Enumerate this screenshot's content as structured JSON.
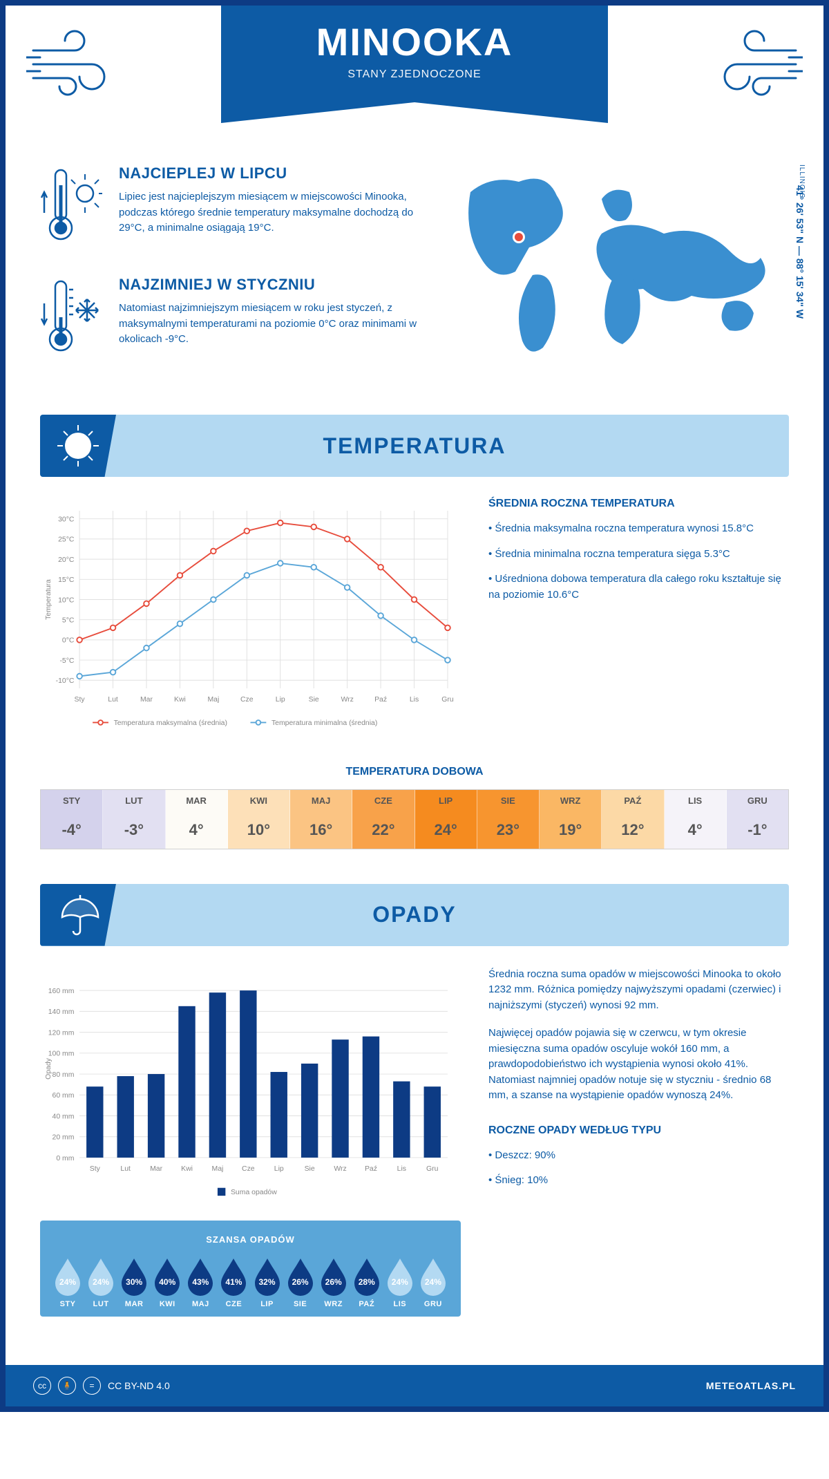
{
  "header": {
    "city": "MINOOKA",
    "country": "STANY ZJEDNOCZONE",
    "state": "ILLINOIS",
    "coords": "41° 26' 53\" N — 88° 15' 34\" W"
  },
  "facts": {
    "hot": {
      "title": "NAJCIEPLEJ W LIPCU",
      "text": "Lipiec jest najcieplejszym miesiącem w miejscowości Minooka, podczas którego średnie temperatury maksymalne dochodzą do 29°C, a minimalne osiągają 19°C."
    },
    "cold": {
      "title": "NAJZIMNIEJ W STYCZNIU",
      "text": "Natomiast najzimniejszym miesiącem w roku jest styczeń, z maksymalnymi temperaturami na poziomie 0°C oraz minimami w okolicach -9°C."
    }
  },
  "temp_section": {
    "title": "TEMPERATURA",
    "chart": {
      "type": "line",
      "months": [
        "Sty",
        "Lut",
        "Mar",
        "Kwi",
        "Maj",
        "Cze",
        "Lip",
        "Sie",
        "Wrz",
        "Paź",
        "Lis",
        "Gru"
      ],
      "ylabel": "Temperatura",
      "ytick_labels": [
        "-10°C",
        "-5°C",
        "0°C",
        "5°C",
        "10°C",
        "15°C",
        "20°C",
        "25°C",
        "30°C"
      ],
      "ytick_vals": [
        -10,
        -5,
        0,
        5,
        10,
        15,
        20,
        25,
        30
      ],
      "ylim": [
        -12,
        32
      ],
      "series": [
        {
          "name": "Temperatura maksymalna (średnia)",
          "color": "#e74c3c",
          "data": [
            0,
            3,
            9,
            16,
            22,
            27,
            29,
            28,
            25,
            18,
            10,
            3
          ]
        },
        {
          "name": "Temperatura minimalna (średnia)",
          "color": "#5aa6d8",
          "data": [
            -9,
            -8,
            -2,
            4,
            10,
            16,
            19,
            18,
            13,
            6,
            0,
            -5
          ]
        }
      ],
      "grid_color": "#e0e0e0",
      "tick_color": "#888",
      "label_fontsize": 11
    },
    "summary": {
      "title": "ŚREDNIA ROCZNA TEMPERATURA",
      "b1": "• Średnia maksymalna roczna temperatura wynosi 15.8°C",
      "b2": "• Średnia minimalna roczna temperatura sięga 5.3°C",
      "b3": "• Uśredniona dobowa temperatura dla całego roku kształtuje się na poziomie 10.6°C"
    },
    "daily": {
      "title": "TEMPERATURA DOBOWA",
      "months": [
        "STY",
        "LUT",
        "MAR",
        "KWI",
        "MAJ",
        "CZE",
        "LIP",
        "SIE",
        "WRZ",
        "PAŹ",
        "LIS",
        "GRU"
      ],
      "values": [
        "-4°",
        "-3°",
        "4°",
        "10°",
        "16°",
        "22°",
        "24°",
        "23°",
        "19°",
        "12°",
        "4°",
        "-1°"
      ],
      "colors": [
        "#d4d2ec",
        "#e2e0f2",
        "#fdfbf6",
        "#fde0b8",
        "#fbc483",
        "#f8a24a",
        "#f58b1f",
        "#f7952f",
        "#fab764",
        "#fcd9a6",
        "#f5f3f9",
        "#e2e0f2"
      ]
    }
  },
  "precip_section": {
    "title": "OPADY",
    "chart": {
      "type": "bar",
      "months": [
        "Sty",
        "Lut",
        "Mar",
        "Kwi",
        "Maj",
        "Cze",
        "Lip",
        "Sie",
        "Wrz",
        "Paź",
        "Lis",
        "Gru"
      ],
      "ylabel": "Opady",
      "ytick_labels": [
        "0 mm",
        "20 mm",
        "40 mm",
        "60 mm",
        "80 mm",
        "100 mm",
        "120 mm",
        "140 mm",
        "160 mm"
      ],
      "ytick_vals": [
        0,
        20,
        40,
        60,
        80,
        100,
        120,
        140,
        160
      ],
      "ylim": [
        0,
        170
      ],
      "data": [
        68,
        78,
        80,
        145,
        158,
        160,
        82,
        90,
        113,
        116,
        73,
        68
      ],
      "bar_color": "#0d3b84",
      "legend": "Suma opadów",
      "grid_color": "#e0e0e0",
      "tick_color": "#888",
      "label_fontsize": 11
    },
    "summary": {
      "p1": "Średnia roczna suma opadów w miejscowości Minooka to około 1232 mm. Różnica pomiędzy najwyższymi opadami (czerwiec) i najniższymi (styczeń) wynosi 92 mm.",
      "p2": "Najwięcej opadów pojawia się w czerwcu, w tym okresie miesięczna suma opadów oscyluje wokół 160 mm, a prawdopodobieństwo ich wystąpienia wynosi około 41%. Natomiast najmniej opadów notuje się w styczniu - średnio 68 mm, a szanse na wystąpienie opadów wynoszą 24%."
    },
    "chance": {
      "title": "SZANSA OPADÓW",
      "months": [
        "STY",
        "LUT",
        "MAR",
        "KWI",
        "MAJ",
        "CZE",
        "LIP",
        "SIE",
        "WRZ",
        "PAŹ",
        "LIS",
        "GRU"
      ],
      "pct": [
        "24%",
        "24%",
        "30%",
        "40%",
        "43%",
        "41%",
        "32%",
        "26%",
        "26%",
        "28%",
        "24%",
        "24%"
      ],
      "light": [
        true,
        true,
        false,
        false,
        false,
        false,
        false,
        false,
        false,
        false,
        true,
        true
      ],
      "light_color": "#b3d9f2",
      "dark_color": "#0d3b84"
    },
    "by_type": {
      "title": "ROCZNE OPADY WEDŁUG TYPU",
      "rain": "• Deszcz: 90%",
      "snow": "• Śnieg: 10%"
    }
  },
  "footer": {
    "license": "CC BY-ND 4.0",
    "site": "METEOATLAS.PL"
  }
}
